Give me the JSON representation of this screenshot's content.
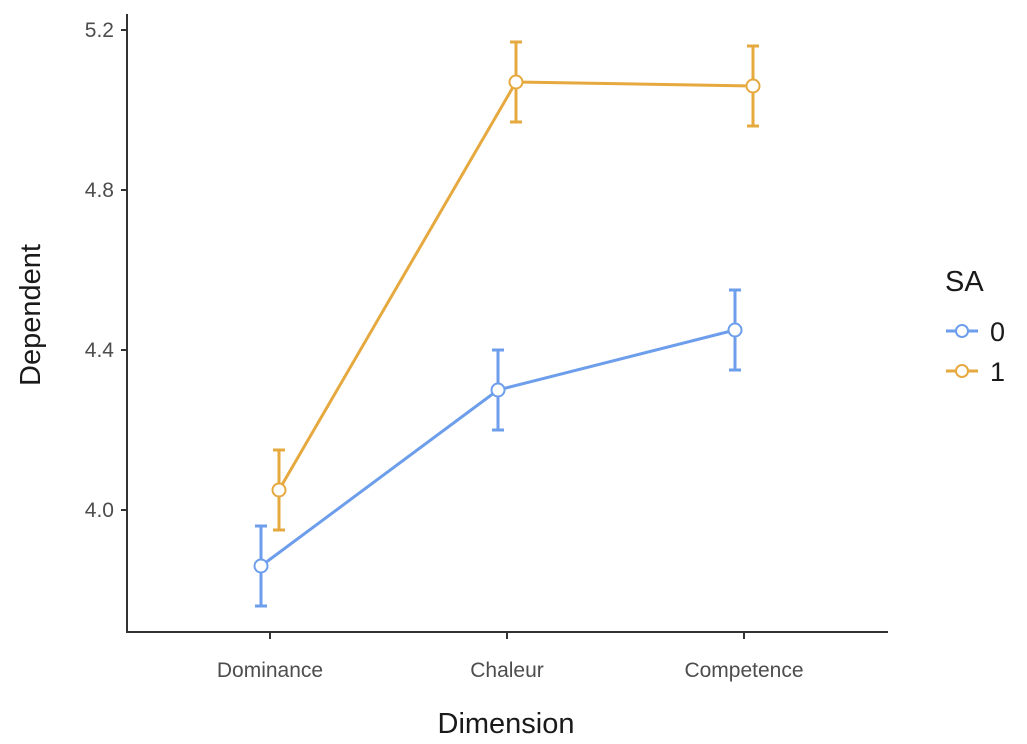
{
  "chart_data": {
    "type": "line",
    "categories": [
      "Dominance",
      "Chaleur",
      "Competence"
    ],
    "xlabel": "Dimension",
    "ylabel": "Dependent",
    "ylim": [
      3.7,
      5.24
    ],
    "yticks": [
      4.0,
      4.4,
      4.8,
      5.2
    ],
    "ytick_labels": [
      "4.0",
      "4.4",
      "4.8",
      "5.2"
    ],
    "grid": false,
    "legend": {
      "title": "SA",
      "placement": "right"
    },
    "series": [
      {
        "name": "0",
        "color": "#6d9eeb",
        "values": [
          3.86,
          4.3,
          4.45
        ],
        "error_low": [
          3.76,
          4.2,
          4.35
        ],
        "error_high": [
          3.96,
          4.4,
          4.55
        ]
      },
      {
        "name": "1",
        "color": "#e6a93f",
        "values": [
          4.05,
          5.07,
          5.06
        ],
        "error_low": [
          3.95,
          4.97,
          4.96
        ],
        "error_high": [
          4.15,
          5.17,
          5.16
        ]
      }
    ]
  }
}
